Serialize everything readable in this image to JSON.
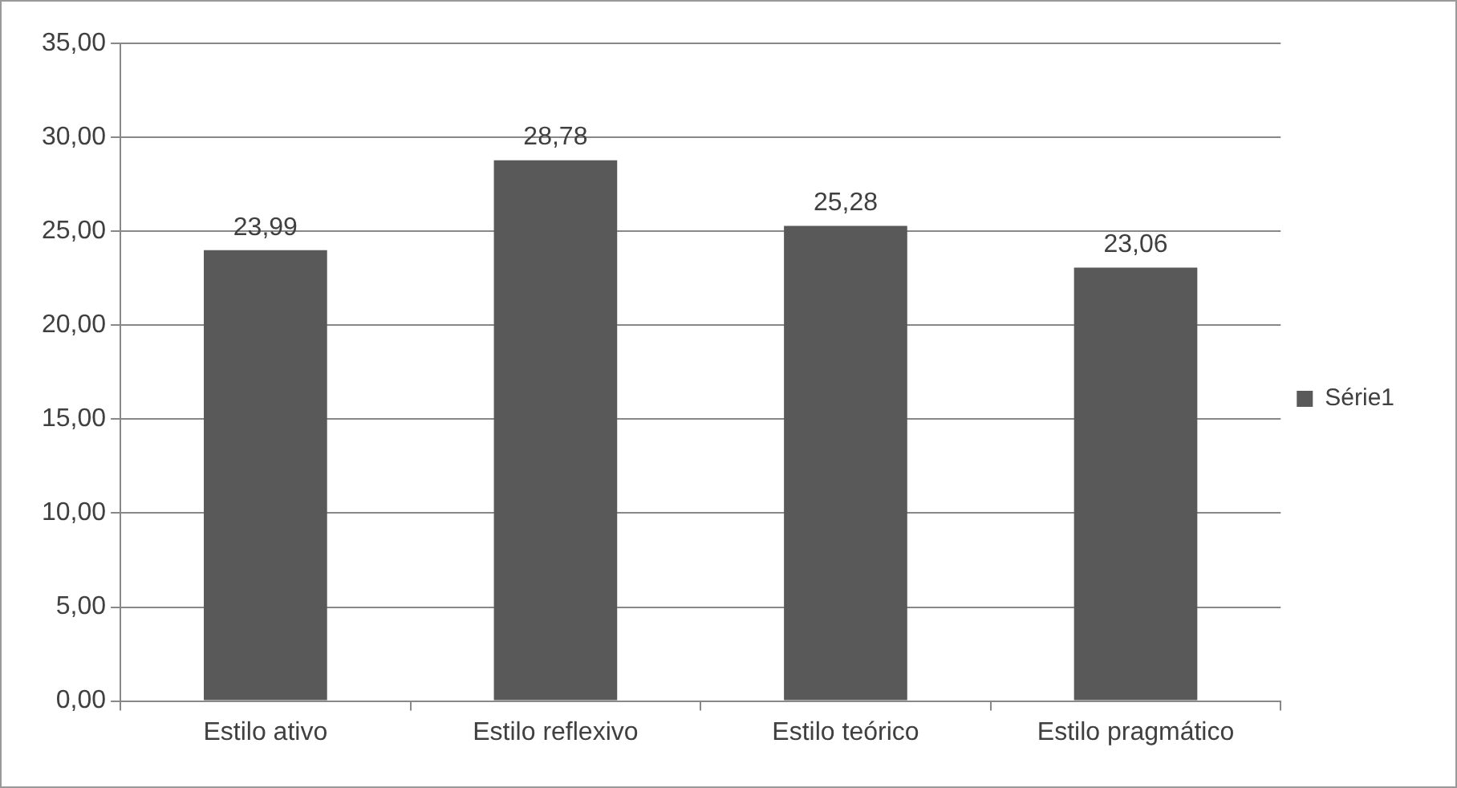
{
  "chart_data": {
    "type": "bar",
    "categories": [
      "Estilo ativo",
      "Estilo reflexivo",
      "Estilo teórico",
      "Estilo pragmático"
    ],
    "series": [
      {
        "name": "Série1",
        "color": "#595959",
        "values": [
          23.99,
          28.78,
          25.28,
          23.06
        ],
        "value_labels": [
          "23,99",
          "28,78",
          "25,28",
          "23,06"
        ]
      }
    ],
    "ylim": [
      0,
      35
    ],
    "yticks": [
      {
        "value": 0,
        "label": "0,00"
      },
      {
        "value": 5,
        "label": "5,00"
      },
      {
        "value": 10,
        "label": "10,00"
      },
      {
        "value": 15,
        "label": "15,00"
      },
      {
        "value": 20,
        "label": "20,00"
      },
      {
        "value": 25,
        "label": "25,00"
      },
      {
        "value": 30,
        "label": "30,00"
      },
      {
        "value": 35,
        "label": "35,00"
      }
    ],
    "grid": "y",
    "legend": "right"
  }
}
